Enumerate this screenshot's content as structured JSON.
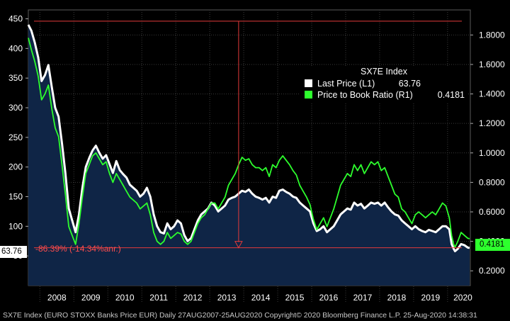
{
  "chart_data": {
    "type": "line",
    "legend": {
      "title": "SX7E Index",
      "entries": [
        {
          "name": "Last Price  (L1)",
          "value": "63.76",
          "color": "#ffffff"
        },
        {
          "name": "Price to Book Ratio  (R1)",
          "value": "0.4181",
          "color": "#2dff2d"
        }
      ],
      "placement": "top-right"
    },
    "x_ticks": [
      "2008",
      "2009",
      "2010",
      "2011",
      "2012",
      "2013",
      "2014",
      "2015",
      "2016",
      "2017",
      "2018",
      "2019",
      "2020"
    ],
    "y_left_ticks": [
      "50",
      "100",
      "150",
      "200",
      "250",
      "300",
      "350",
      "400",
      "450"
    ],
    "y_left_range": [
      0,
      465
    ],
    "y_right_ticks": [
      "0.2000",
      "0.4000",
      "0.6000",
      "0.8000",
      "1.0000",
      "1.2000",
      "1.4000",
      "1.6000",
      "1.8000"
    ],
    "y_right_range": [
      0.1,
      1.97
    ],
    "grid": true,
    "last_price_label": "63.76",
    "pb_label": "0.4181",
    "annotation": "-86.39% (-14.34%anr.)",
    "reference_high": 446,
    "reference_low": 63.76,
    "footer": "SX7E Index (EURO STOXX Banks Price EUR)  Daily 27AUG2007-25AUG2020  Copyright© 2020 Bloomberg Finance L.P.  25-Aug-2020 14:38:31",
    "series": [
      {
        "name": "Last Price  (L1)",
        "axis": "left",
        "color": "#ffffff",
        "x": [
          2007.66,
          2007.75,
          2007.85,
          2007.95,
          2008.05,
          2008.15,
          2008.25,
          2008.35,
          2008.45,
          2008.55,
          2008.65,
          2008.75,
          2008.85,
          2008.95,
          2009.05,
          2009.15,
          2009.25,
          2009.35,
          2009.45,
          2009.55,
          2009.65,
          2009.75,
          2009.85,
          2009.95,
          2010.05,
          2010.15,
          2010.25,
          2010.35,
          2010.45,
          2010.55,
          2010.65,
          2010.75,
          2010.85,
          2010.95,
          2011.05,
          2011.15,
          2011.25,
          2011.35,
          2011.45,
          2011.55,
          2011.65,
          2011.75,
          2011.85,
          2011.95,
          2012.05,
          2012.15,
          2012.25,
          2012.35,
          2012.45,
          2012.55,
          2012.65,
          2012.75,
          2012.85,
          2012.95,
          2013.05,
          2013.15,
          2013.25,
          2013.35,
          2013.45,
          2013.55,
          2013.65,
          2013.75,
          2013.85,
          2013.95,
          2014.05,
          2014.15,
          2014.25,
          2014.35,
          2014.45,
          2014.55,
          2014.65,
          2014.75,
          2014.85,
          2014.95,
          2015.05,
          2015.15,
          2015.25,
          2015.35,
          2015.45,
          2015.55,
          2015.65,
          2015.75,
          2015.85,
          2015.95,
          2016.05,
          2016.15,
          2016.25,
          2016.35,
          2016.45,
          2016.55,
          2016.65,
          2016.75,
          2016.85,
          2016.95,
          2017.05,
          2017.15,
          2017.25,
          2017.35,
          2017.45,
          2017.55,
          2017.65,
          2017.75,
          2017.85,
          2017.95,
          2018.05,
          2018.15,
          2018.25,
          2018.35,
          2018.45,
          2018.55,
          2018.65,
          2018.75,
          2018.85,
          2018.95,
          2019.05,
          2019.15,
          2019.25,
          2019.35,
          2019.45,
          2019.55,
          2019.65,
          2019.75,
          2019.85,
          2019.95,
          2020.05,
          2020.12,
          2020.18,
          2020.22,
          2020.3,
          2020.4,
          2020.5,
          2020.6,
          2020.65
        ],
        "values": [
          440,
          430,
          410,
          385,
          345,
          355,
          372,
          335,
          300,
          285,
          240,
          190,
          130,
          110,
          90,
          120,
          165,
          200,
          215,
          228,
          236,
          224,
          214,
          220,
          205,
          190,
          210,
          195,
          188,
          182,
          170,
          165,
          160,
          150,
          155,
          165,
          150,
          120,
          100,
          90,
          88,
          105,
          95,
          100,
          110,
          105,
          85,
          75,
          80,
          95,
          110,
          120,
          125,
          130,
          140,
          135,
          125,
          130,
          135,
          145,
          148,
          150,
          155,
          160,
          158,
          162,
          155,
          150,
          148,
          145,
          148,
          140,
          150,
          148,
          160,
          162,
          158,
          155,
          150,
          148,
          140,
          135,
          130,
          125,
          105,
          92,
          95,
          100,
          90,
          95,
          100,
          110,
          120,
          125,
          130,
          128,
          140,
          135,
          138,
          130,
          135,
          140,
          138,
          140,
          135,
          140,
          132,
          125,
          120,
          118,
          110,
          105,
          100,
          95,
          100,
          95,
          92,
          90,
          94,
          92,
          90,
          95,
          100,
          100,
          95,
          70,
          62,
          58,
          62,
          70,
          68,
          64,
          63.76
        ]
      },
      {
        "name": "Price to Book Ratio  (R1)",
        "axis": "right",
        "color": "#2dff2d",
        "x": [
          2007.66,
          2007.75,
          2007.85,
          2007.95,
          2008.05,
          2008.15,
          2008.25,
          2008.35,
          2008.45,
          2008.55,
          2008.65,
          2008.75,
          2008.85,
          2008.95,
          2009.05,
          2009.15,
          2009.25,
          2009.35,
          2009.45,
          2009.55,
          2009.65,
          2009.75,
          2009.85,
          2009.95,
          2010.05,
          2010.15,
          2010.25,
          2010.35,
          2010.45,
          2010.55,
          2010.65,
          2010.75,
          2010.85,
          2010.95,
          2011.05,
          2011.15,
          2011.25,
          2011.35,
          2011.45,
          2011.55,
          2011.65,
          2011.75,
          2011.85,
          2011.95,
          2012.05,
          2012.15,
          2012.25,
          2012.35,
          2012.45,
          2012.55,
          2012.65,
          2012.75,
          2012.85,
          2012.95,
          2013.05,
          2013.15,
          2013.25,
          2013.35,
          2013.45,
          2013.55,
          2013.65,
          2013.75,
          2013.85,
          2013.95,
          2014.05,
          2014.15,
          2014.25,
          2014.35,
          2014.45,
          2014.55,
          2014.65,
          2014.75,
          2014.85,
          2014.95,
          2015.05,
          2015.15,
          2015.25,
          2015.35,
          2015.45,
          2015.55,
          2015.65,
          2015.75,
          2015.85,
          2015.95,
          2016.05,
          2016.15,
          2016.25,
          2016.35,
          2016.45,
          2016.55,
          2016.65,
          2016.75,
          2016.85,
          2016.95,
          2017.05,
          2017.15,
          2017.25,
          2017.35,
          2017.45,
          2017.55,
          2017.65,
          2017.75,
          2017.85,
          2017.95,
          2018.05,
          2018.15,
          2018.25,
          2018.35,
          2018.45,
          2018.55,
          2018.65,
          2018.75,
          2018.85,
          2018.95,
          2019.05,
          2019.15,
          2019.25,
          2019.35,
          2019.45,
          2019.55,
          2019.65,
          2019.75,
          2019.85,
          2019.95,
          2020.05,
          2020.12,
          2020.18,
          2020.22,
          2020.3,
          2020.4,
          2020.5,
          2020.6,
          2020.65
        ],
        "values": [
          1.78,
          1.7,
          1.62,
          1.52,
          1.36,
          1.4,
          1.46,
          1.3,
          1.17,
          1.11,
          0.92,
          0.72,
          0.5,
          0.44,
          0.38,
          0.52,
          0.7,
          0.86,
          0.92,
          0.98,
          1.0,
          0.96,
          0.92,
          0.94,
          0.86,
          0.8,
          0.86,
          0.82,
          0.78,
          0.74,
          0.7,
          0.68,
          0.66,
          0.62,
          0.64,
          0.66,
          0.58,
          0.46,
          0.4,
          0.38,
          0.4,
          0.46,
          0.42,
          0.44,
          0.46,
          0.45,
          0.4,
          0.38,
          0.4,
          0.46,
          0.52,
          0.56,
          0.58,
          0.62,
          0.66,
          0.66,
          0.62,
          0.66,
          0.7,
          0.78,
          0.82,
          0.86,
          0.92,
          0.97,
          0.95,
          0.96,
          0.92,
          0.9,
          0.9,
          0.88,
          0.9,
          0.84,
          0.92,
          0.9,
          0.95,
          0.98,
          0.95,
          0.92,
          0.88,
          0.85,
          0.78,
          0.74,
          0.7,
          0.65,
          0.55,
          0.48,
          0.52,
          0.56,
          0.5,
          0.56,
          0.62,
          0.7,
          0.78,
          0.82,
          0.86,
          0.84,
          0.92,
          0.88,
          0.92,
          0.86,
          0.9,
          0.94,
          0.92,
          0.94,
          0.88,
          0.9,
          0.84,
          0.78,
          0.72,
          0.7,
          0.62,
          0.6,
          0.56,
          0.52,
          0.58,
          0.6,
          0.58,
          0.56,
          0.58,
          0.6,
          0.58,
          0.62,
          0.66,
          0.64,
          0.56,
          0.44,
          0.38,
          0.36,
          0.4,
          0.46,
          0.44,
          0.42,
          0.4181
        ]
      }
    ]
  }
}
